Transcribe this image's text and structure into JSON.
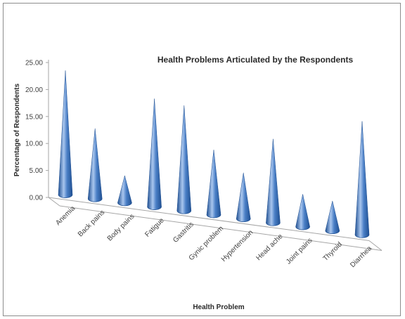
{
  "chart_data": {
    "type": "bar",
    "shape": "3d-cone",
    "title": "Health Problems Articulated by the Respondents",
    "xlabel": "Health Problem",
    "ylabel": "Percentage of Respondents",
    "ylim": [
      0,
      25
    ],
    "yticks": [
      "0.00",
      "5.00",
      "10.00",
      "15.00",
      "20.00",
      "25.00"
    ],
    "categories": [
      "Anemia",
      "Back pains",
      "Body pains",
      "Fatigue",
      "Gastritis",
      "Gynic problem",
      "Hypertension",
      "Head ache",
      "Joint pains",
      "Thyroid",
      "Diarrhea"
    ],
    "values": [
      23.0,
      13.0,
      5.0,
      20.0,
      19.5,
      12.0,
      8.5,
      15.5,
      6.0,
      5.5,
      21.0
    ],
    "grid": false,
    "legend": "none",
    "colors": {
      "cone": "#4a7fc6",
      "cone_light": "#a9c6ee",
      "cone_dark": "#1f4f91",
      "axis": "#a6a6a6"
    }
  }
}
